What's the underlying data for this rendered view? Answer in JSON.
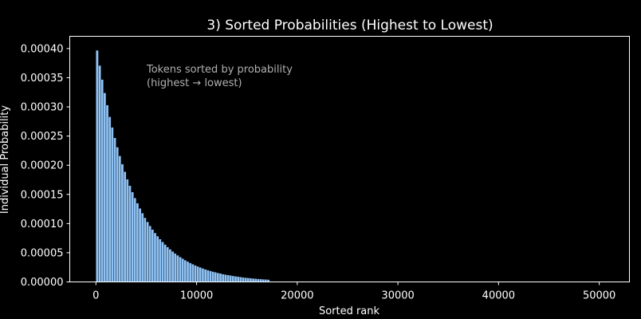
{
  "chart_data": {
    "type": "bar",
    "title": "3) Sorted Probabilities (Highest to Lowest)",
    "xlabel": "Sorted rank",
    "ylabel": "Individual Probability",
    "xlim": [
      -2600,
      53000
    ],
    "ylim": [
      0,
      0.000421
    ],
    "x_ticks": [
      0,
      10000,
      20000,
      30000,
      40000,
      50000
    ],
    "x_tick_labels": [
      "0",
      "10000",
      "20000",
      "30000",
      "40000",
      "50000"
    ],
    "y_ticks": [
      0,
      5e-05,
      0.0001,
      0.00015,
      0.0002,
      0.00025,
      0.0003,
      0.00035,
      0.0004
    ],
    "y_tick_labels": [
      "0.00000",
      "0.00005",
      "0.00010",
      "0.00015",
      "0.00020",
      "0.00025",
      "0.00030",
      "0.00035",
      "0.00040"
    ],
    "annotation": {
      "line1": "Tokens sorted by probability",
      "line2": "(highest → lowest)"
    },
    "bar_color": "#8ec2f5",
    "series": [
      {
        "x": [
          0,
          250,
          500,
          750,
          1000,
          1250,
          1500,
          1750,
          2000,
          2250,
          2500,
          2750,
          3000,
          3250,
          3500,
          3750,
          4000,
          4250,
          4500,
          4750,
          5000,
          5250,
          5500,
          5750,
          6000,
          6250,
          6500,
          6750,
          7000,
          7250,
          7500,
          7750,
          8000,
          8250,
          8500,
          8750,
          9000,
          9250,
          9500,
          9750,
          10000,
          10250,
          10500,
          10750,
          11000,
          11250,
          11500,
          11750,
          12000,
          12250,
          12500,
          12750,
          13000,
          13250,
          13500,
          13750,
          14000,
          14250,
          14500,
          14750,
          15000,
          15250,
          15500,
          15750,
          16000,
          16250,
          16500,
          16750,
          17000
        ],
        "values": [
          0.000397,
          0.000371,
          0.000347,
          0.000324,
          0.000303,
          0.000283,
          0.000265,
          0.000247,
          0.000231,
          0.000216,
          0.000202,
          0.000189,
          0.000176,
          0.000165,
          0.000154,
          0.000144,
          0.000135,
          0.000126,
          0.000118,
          0.00011,
          0.000103,
          9.61e-05,
          8.99e-05,
          8.4e-05,
          7.85e-05,
          7.34e-05,
          6.86e-05,
          6.41e-05,
          5.99e-05,
          5.6e-05,
          5.23e-05,
          4.89e-05,
          4.57e-05,
          4.27e-05,
          3.99e-05,
          3.73e-05,
          3.49e-05,
          3.26e-05,
          3.05e-05,
          2.85e-05,
          2.66e-05,
          2.49e-05,
          2.32e-05,
          2.17e-05,
          2.03e-05,
          1.9e-05,
          1.77e-05,
          1.66e-05,
          1.55e-05,
          1.45e-05,
          1.35e-05,
          1.27e-05,
          1.18e-05,
          1.11e-05,
          1.03e-05,
          9.66e-06,
          9.03e-06,
          8.44e-06,
          7.89e-06,
          7.37e-06,
          6.89e-06,
          6.44e-06,
          6.02e-06,
          5.63e-06,
          5.26e-06,
          4.92e-06,
          4.6e-06,
          4.3e-06,
          4.02e-06
        ]
      }
    ]
  }
}
